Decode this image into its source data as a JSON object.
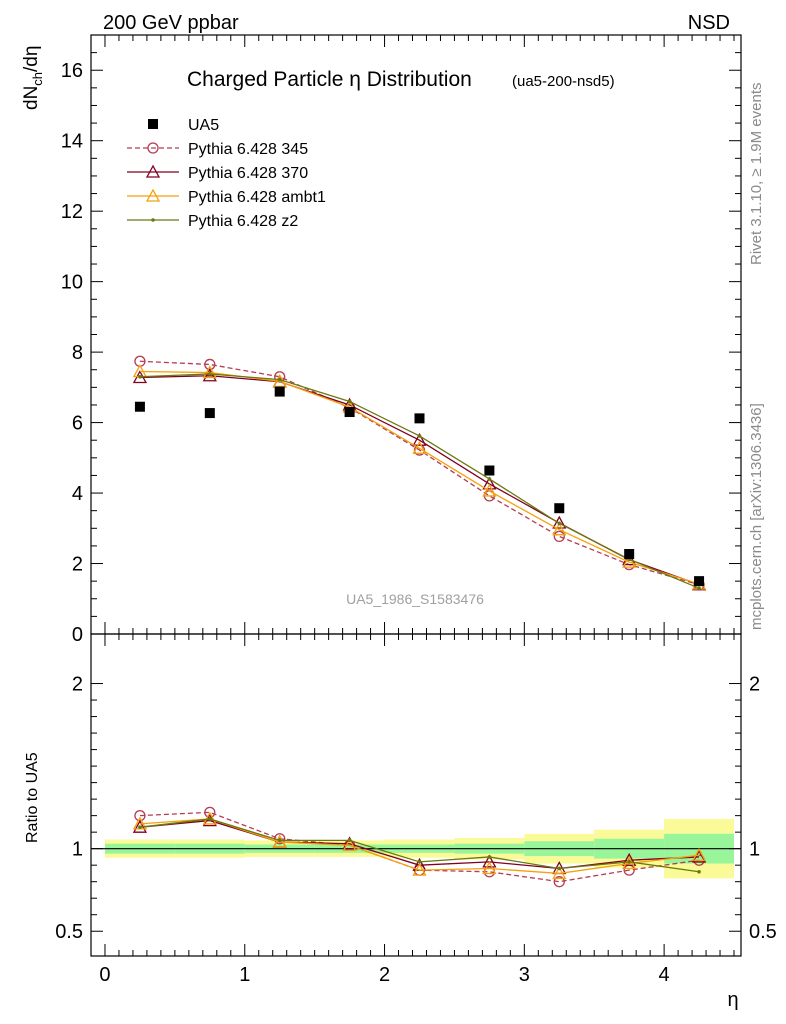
{
  "header": {
    "left_label": "200 GeV ppbar",
    "right_label": "NSD"
  },
  "side_labels": {
    "rivet": "Rivet 3.1.10, ≥ 1.9M events",
    "mcplots": "mcplots.cern.ch [arXiv:1306.3436]"
  },
  "chart_data": [
    {
      "type": "scatter",
      "title": "Charged Particle η Distribution",
      "subtitle": "(ua5-200-nsd5)",
      "watermark": "UA5_1986_S1583476",
      "ylabel": "dN_ch/dη",
      "xlim": [
        -0.1,
        4.55
      ],
      "ylim": [
        0,
        17
      ],
      "x_ticks": [
        0,
        1,
        2,
        3,
        4
      ],
      "y_ticks": [
        0,
        2,
        4,
        6,
        8,
        10,
        12,
        14,
        16
      ],
      "y_tick_labels": [
        "0",
        "2",
        "4",
        "6",
        "8",
        "10",
        "12",
        "14",
        "16"
      ],
      "x": [
        0.25,
        0.75,
        1.25,
        1.75,
        2.25,
        2.75,
        3.25,
        3.75,
        4.25
      ],
      "legend_position": "top-left",
      "series": [
        {
          "name": "UA5",
          "color": "#000000",
          "style": "data-square",
          "values": [
            6.45,
            6.27,
            6.88,
            6.3,
            6.12,
            4.64,
            3.57,
            2.27,
            1.5
          ]
        },
        {
          "name": "Pythia 6.428 345",
          "color": "#b53c51",
          "style": "dashed-circle",
          "values": [
            7.74,
            7.65,
            7.3,
            6.42,
            5.22,
            3.92,
            2.77,
            1.97,
            1.4
          ]
        },
        {
          "name": "Pythia 6.428 370",
          "color": "#800020",
          "style": "solid-triangle",
          "values": [
            7.28,
            7.33,
            7.16,
            6.5,
            5.5,
            4.26,
            3.15,
            2.11,
            1.4
          ]
        },
        {
          "name": "Pythia 6.428 ambt1",
          "color": "#f5a00c",
          "style": "solid-triangle",
          "values": [
            7.45,
            7.42,
            7.17,
            6.44,
            5.27,
            4.06,
            2.96,
            2.04,
            1.42
          ]
        },
        {
          "name": "Pythia 6.428 z2",
          "color": "#6b7a10",
          "style": "solid-dot",
          "values": [
            7.3,
            7.38,
            7.22,
            6.6,
            5.62,
            4.4,
            3.14,
            2.12,
            1.3
          ]
        }
      ]
    },
    {
      "type": "line",
      "ylabel": "Ratio to UA5",
      "xlabel": "η",
      "xlim": [
        -0.1,
        4.55
      ],
      "ylim": [
        0.35,
        2.3
      ],
      "x_ticks": [
        0,
        1,
        2,
        3,
        4
      ],
      "x_tick_labels": [
        "0",
        "1",
        "2",
        "3",
        "4"
      ],
      "y_ticks": [
        0.5,
        1,
        2
      ],
      "y_tick_labels": [
        "0.5",
        "1",
        "2"
      ],
      "x": [
        0.25,
        0.75,
        1.25,
        1.75,
        2.25,
        2.75,
        3.25,
        3.75,
        4.25
      ],
      "bands": {
        "bins": [
          [
            0,
            0.5
          ],
          [
            0.5,
            1
          ],
          [
            1,
            1.5
          ],
          [
            1.5,
            2
          ],
          [
            2,
            2.5
          ],
          [
            2.5,
            3
          ],
          [
            3,
            3.5
          ],
          [
            3.5,
            4
          ],
          [
            4,
            4.5
          ]
        ],
        "inner": [
          [
            0.97,
            1.03
          ],
          [
            0.97,
            1.03
          ],
          [
            0.975,
            1.025
          ],
          [
            0.975,
            1.025
          ],
          [
            0.975,
            1.025
          ],
          [
            0.97,
            1.03
          ],
          [
            0.955,
            1.045
          ],
          [
            0.94,
            1.06
          ],
          [
            0.91,
            1.09
          ]
        ],
        "outer": [
          [
            0.945,
            1.055
          ],
          [
            0.945,
            1.055
          ],
          [
            0.95,
            1.05
          ],
          [
            0.95,
            1.05
          ],
          [
            0.945,
            1.055
          ],
          [
            0.935,
            1.065
          ],
          [
            0.91,
            1.09
          ],
          [
            0.885,
            1.115
          ],
          [
            0.82,
            1.18
          ]
        ],
        "inner_color": "#99f599",
        "outer_color": "#fafa99"
      },
      "series": [
        {
          "name": "Pythia 6.428 345",
          "color": "#b53c51",
          "style": "dashed-circle",
          "values": [
            1.2,
            1.22,
            1.06,
            1.02,
            0.87,
            0.86,
            0.8,
            0.87,
            0.93
          ]
        },
        {
          "name": "Pythia 6.428 370",
          "color": "#800020",
          "style": "solid-triangle",
          "values": [
            1.13,
            1.17,
            1.04,
            1.03,
            0.9,
            0.92,
            0.88,
            0.93,
            0.95
          ]
        },
        {
          "name": "Pythia 6.428 ambt1",
          "color": "#f5a00c",
          "style": "solid-triangle",
          "values": [
            1.15,
            1.18,
            1.04,
            1.02,
            0.87,
            0.88,
            0.85,
            0.91,
            0.96
          ]
        },
        {
          "name": "Pythia 6.428 z2",
          "color": "#6b7a10",
          "style": "solid-dot",
          "values": [
            1.13,
            1.18,
            1.05,
            1.05,
            0.92,
            0.95,
            0.88,
            0.92,
            0.86
          ]
        }
      ]
    }
  ]
}
